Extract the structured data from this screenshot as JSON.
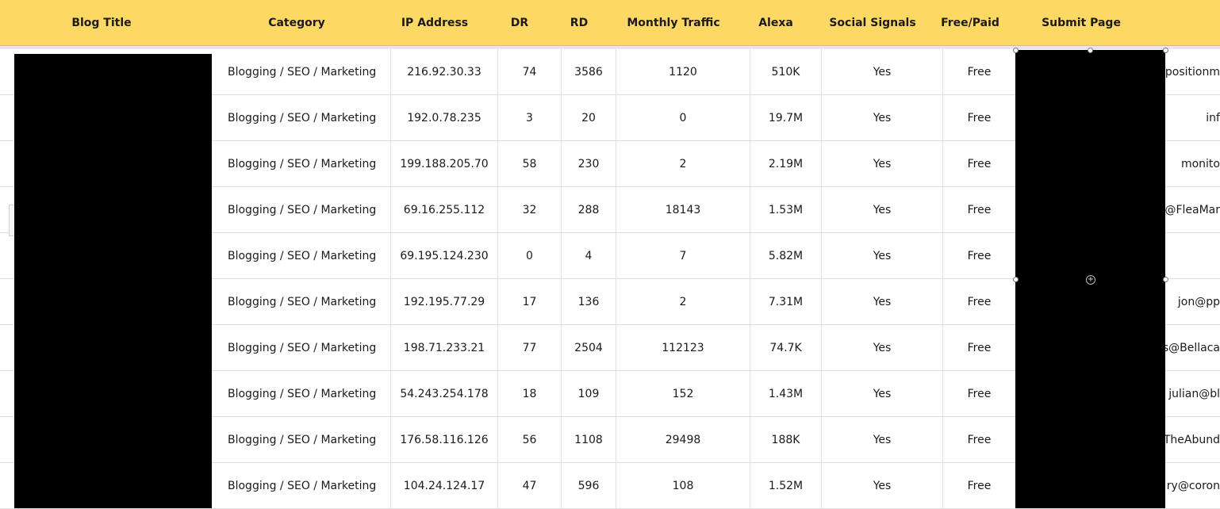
{
  "columns": {
    "blog_title": "Blog Title",
    "category": "Category",
    "ip_address": "IP Address",
    "dr": "DR",
    "rd": "RD",
    "monthly_traffic": "Monthly Traffic",
    "alexa": "Alexa",
    "social_signals": "Social Signals",
    "free_paid": "Free/Paid",
    "submit_page": "Submit Page"
  },
  "rows": [
    {
      "category": "Blogging / SEO / Marketing",
      "ip": "216.92.30.33",
      "dr": "74",
      "rd": "3586",
      "traffic": "1120",
      "alexa": "510K",
      "social": "Yes",
      "pricing": "Free",
      "contact": "positionm"
    },
    {
      "category": "Blogging / SEO / Marketing",
      "ip": "192.0.78.235",
      "dr": "3",
      "rd": "20",
      "traffic": "0",
      "alexa": "19.7M",
      "social": "Yes",
      "pricing": "Free",
      "contact": "inf"
    },
    {
      "category": "Blogging / SEO / Marketing",
      "ip": "199.188.205.70",
      "dr": "58",
      "rd": "230",
      "traffic": "2",
      "alexa": "2.19M",
      "social": "Yes",
      "pricing": "Free",
      "contact": "monito"
    },
    {
      "category": "Blogging / SEO / Marketing",
      "ip": "69.16.255.112",
      "dr": "32",
      "rd": "288",
      "traffic": "18143",
      "alexa": "1.53M",
      "social": "Yes",
      "pricing": "Free",
      "contact": "g@FleaMar"
    },
    {
      "category": "Blogging / SEO / Marketing",
      "ip": "69.195.124.230",
      "dr": "0",
      "rd": "4",
      "traffic": "7",
      "alexa": "5.82M",
      "social": "Yes",
      "pricing": "Free",
      "contact": ""
    },
    {
      "category": "Blogging / SEO / Marketing",
      "ip": "192.195.77.29",
      "dr": "17",
      "rd": "136",
      "traffic": "2",
      "alexa": "7.31M",
      "social": "Yes",
      "pricing": "Free",
      "contact": "jon@pp"
    },
    {
      "category": "Blogging / SEO / Marketing",
      "ip": "198.71.233.21",
      "dr": "77",
      "rd": "2504",
      "traffic": "112123",
      "alexa": "74.7K",
      "social": "Yes",
      "pricing": "Free",
      "contact": "s@Bellaca"
    },
    {
      "category": "Blogging / SEO / Marketing",
      "ip": "54.243.254.178",
      "dr": "18",
      "rd": "109",
      "traffic": "152",
      "alexa": "1.43M",
      "social": "Yes",
      "pricing": "Free",
      "contact": "julian@bl"
    },
    {
      "category": "Blogging / SEO / Marketing",
      "ip": "176.58.116.126",
      "dr": "56",
      "rd": "1108",
      "traffic": "29498",
      "alexa": "188K",
      "social": "Yes",
      "pricing": "Free",
      "contact": "TheAbund"
    },
    {
      "category": "Blogging / SEO / Marketing",
      "ip": "104.24.124.17",
      "dr": "47",
      "rd": "596",
      "traffic": "108",
      "alexa": "1.52M",
      "social": "Yes",
      "pricing": "Free",
      "contact": "ry@coron"
    }
  ],
  "colors": {
    "header_bg": "#fed865",
    "redaction": "#000000",
    "grid_line": "#e2e2e2"
  },
  "icons": {
    "selection_center": "move-handle-icon"
  }
}
